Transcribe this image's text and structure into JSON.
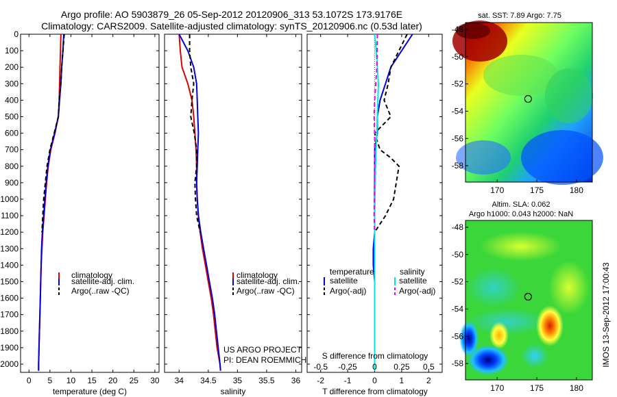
{
  "header": {
    "line1": "Argo profile: AO 5903879_26 05-Sep-2012 20120906_313 53.1072S 173.9176E",
    "line2": "Climatology: CARS2009. Satellite-adjusted climatology: synTS_20120906.nc (0.53d later)"
  },
  "colors": {
    "climatology": "#dd0000",
    "satellite": "#0000dd",
    "argo": "#000000",
    "sal_satellite": "#00e5e5",
    "sal_argo": "#ee00ee"
  },
  "chart_data": [
    {
      "id": "temperature",
      "type": "line",
      "xlabel": "temperature (deg C)",
      "xlim": [
        -2,
        31
      ],
      "xticks": [
        0,
        5,
        10,
        15,
        20,
        25,
        30
      ],
      "ylim": [
        0,
        2050
      ],
      "yticks": [
        0,
        100,
        200,
        300,
        400,
        500,
        600,
        700,
        800,
        900,
        1000,
        1100,
        1200,
        1300,
        1400,
        1500,
        1600,
        1700,
        1800,
        1900,
        2000
      ],
      "legend": [
        "climatology",
        "satellite-adj. clim.",
        "Argo(..raw -QC)"
      ],
      "series": [
        {
          "name": "climatology",
          "style": "solid",
          "color": "#dd0000",
          "points": [
            [
              7.6,
              0
            ],
            [
              7.5,
              100
            ],
            [
              7.4,
              200
            ],
            [
              7.3,
              300
            ],
            [
              7.2,
              400
            ],
            [
              7.0,
              500
            ],
            [
              6.2,
              600
            ],
            [
              5.2,
              700
            ],
            [
              4.6,
              800
            ],
            [
              4.2,
              900
            ],
            [
              3.9,
              1000
            ],
            [
              3.6,
              1100
            ],
            [
              3.3,
              1200
            ],
            [
              3.1,
              1300
            ],
            [
              2.9,
              1400
            ],
            [
              2.8,
              1500
            ],
            [
              2.7,
              1600
            ],
            [
              2.6,
              1700
            ],
            [
              2.5,
              1800
            ],
            [
              2.4,
              1900
            ],
            [
              2.3,
              2000
            ],
            [
              2.3,
              2040
            ]
          ]
        },
        {
          "name": "satellite-adj. clim.",
          "style": "solid",
          "color": "#0000dd",
          "points": [
            [
              8.3,
              0
            ],
            [
              8.1,
              100
            ],
            [
              7.8,
              200
            ],
            [
              7.6,
              300
            ],
            [
              7.3,
              400
            ],
            [
              7.0,
              500
            ],
            [
              6.1,
              600
            ],
            [
              5.1,
              700
            ],
            [
              4.5,
              800
            ],
            [
              4.1,
              900
            ],
            [
              3.8,
              1000
            ],
            [
              3.5,
              1100
            ],
            [
              3.2,
              1200
            ],
            [
              3.0,
              1300
            ],
            [
              2.9,
              1400
            ],
            [
              2.8,
              1500
            ],
            [
              2.7,
              1600
            ],
            [
              2.6,
              1700
            ],
            [
              2.5,
              1800
            ],
            [
              2.4,
              1900
            ],
            [
              2.3,
              2000
            ],
            [
              2.3,
              2040
            ]
          ]
        },
        {
          "name": "Argo(..raw -QC)",
          "style": "dashed",
          "color": "#000000",
          "points": [
            [
              8.4,
              0
            ],
            [
              8.1,
              100
            ],
            [
              7.8,
              200
            ],
            [
              7.6,
              300
            ],
            [
              7.2,
              400
            ],
            [
              7.0,
              500
            ],
            [
              6.0,
              600
            ],
            [
              5.0,
              700
            ],
            [
              4.3,
              800
            ],
            [
              3.9,
              900
            ],
            [
              3.5,
              1000
            ],
            [
              3.3,
              1100
            ],
            [
              3.1,
              1200
            ]
          ]
        }
      ]
    },
    {
      "id": "salinity",
      "type": "line",
      "xlabel": "salinity",
      "xlim": [
        33.75,
        36.1
      ],
      "xticks": [
        34,
        34.5,
        35,
        35.5,
        36
      ],
      "ylim": [
        0,
        2050
      ],
      "legend": [
        "climatology",
        "satellite-adj. clim.",
        "Argo(..raw -QC)"
      ],
      "annotation": [
        "US ARGO PROJECT",
        "PI: DEAN ROEMMICH"
      ],
      "series": [
        {
          "name": "climatology",
          "style": "solid",
          "color": "#dd0000",
          "points": [
            [
              34.0,
              0
            ],
            [
              34.02,
              100
            ],
            [
              34.05,
              200
            ],
            [
              34.15,
              300
            ],
            [
              34.22,
              400
            ],
            [
              34.25,
              500
            ],
            [
              34.27,
              600
            ],
            [
              34.29,
              700
            ],
            [
              34.3,
              800
            ],
            [
              34.3,
              900
            ],
            [
              34.31,
              1000
            ],
            [
              34.33,
              1100
            ],
            [
              34.36,
              1200
            ],
            [
              34.4,
              1300
            ],
            [
              34.45,
              1400
            ],
            [
              34.5,
              1500
            ],
            [
              34.55,
              1600
            ],
            [
              34.59,
              1700
            ],
            [
              34.62,
              1800
            ],
            [
              34.65,
              1900
            ],
            [
              34.7,
              2000
            ],
            [
              34.71,
              2040
            ]
          ]
        },
        {
          "name": "satellite-adj. clim.",
          "style": "solid",
          "color": "#0000dd",
          "points": [
            [
              34.0,
              0
            ],
            [
              34.15,
              100
            ],
            [
              34.25,
              200
            ],
            [
              34.3,
              300
            ],
            [
              34.31,
              400
            ],
            [
              34.32,
              500
            ],
            [
              34.33,
              600
            ],
            [
              34.32,
              700
            ],
            [
              34.31,
              800
            ],
            [
              34.3,
              900
            ],
            [
              34.31,
              1000
            ],
            [
              34.33,
              1100
            ],
            [
              34.37,
              1200
            ],
            [
              34.42,
              1300
            ],
            [
              34.47,
              1400
            ],
            [
              34.52,
              1500
            ],
            [
              34.57,
              1600
            ],
            [
              34.61,
              1700
            ],
            [
              34.64,
              1800
            ],
            [
              34.67,
              1900
            ],
            [
              34.7,
              2000
            ],
            [
              34.71,
              2040
            ]
          ]
        },
        {
          "name": "Argo(..raw -QC)",
          "style": "dashed",
          "color": "#000000",
          "points": [
            [
              34.18,
              0
            ],
            [
              34.18,
              100
            ],
            [
              34.2,
              200
            ],
            [
              34.25,
              300
            ],
            [
              34.22,
              400
            ],
            [
              34.2,
              500
            ],
            [
              34.26,
              600
            ],
            [
              34.3,
              700
            ],
            [
              34.3,
              800
            ],
            [
              34.27,
              900
            ],
            [
              34.28,
              1000
            ],
            [
              34.3,
              1100
            ],
            [
              34.36,
              1200
            ]
          ]
        }
      ]
    },
    {
      "id": "difference",
      "type": "line",
      "xlabel": "T difference from climatology",
      "xlabel_top": "S difference from climatology",
      "xlim": [
        -2.5,
        2.5
      ],
      "xticks": [
        -2,
        -1,
        0,
        1,
        2
      ],
      "xticks_top_labels": [
        "-0.5",
        "-0.25",
        "0",
        "0.25",
        "0.5"
      ],
      "ylim": [
        0,
        2050
      ],
      "legend_left_title": "temperature",
      "legend_right_title": "salinity",
      "legend_left": [
        "satellite",
        "Argo(-adj)"
      ],
      "legend_right": [
        "satellite",
        "Argo(-adj)"
      ],
      "series": [
        {
          "name": "T satellite",
          "style": "solid",
          "color": "#0000dd",
          "points": [
            [
              1.4,
              0
            ],
            [
              1.0,
              100
            ],
            [
              0.6,
              200
            ],
            [
              0.4,
              300
            ],
            [
              0.2,
              400
            ],
            [
              0.1,
              500
            ],
            [
              0.1,
              600
            ],
            [
              0.0,
              700
            ],
            [
              0.0,
              800
            ],
            [
              0.0,
              900
            ],
            [
              0.0,
              1000
            ],
            [
              0.0,
              1100
            ],
            [
              0.0,
              1200
            ],
            [
              -0.05,
              1300
            ],
            [
              -0.05,
              1400
            ],
            [
              0.0,
              1500
            ],
            [
              0.0,
              1600
            ],
            [
              0.0,
              1700
            ],
            [
              0.0,
              1800
            ],
            [
              0.0,
              1900
            ],
            [
              0.0,
              2000
            ],
            [
              0.0,
              2040
            ]
          ]
        },
        {
          "name": "T Argo(-adj)",
          "style": "dashed",
          "color": "#000000",
          "points": [
            [
              1.2,
              0
            ],
            [
              0.9,
              100
            ],
            [
              0.6,
              200
            ],
            [
              0.5,
              300
            ],
            [
              0.35,
              400
            ],
            [
              0.6,
              500
            ],
            [
              0.0,
              600
            ],
            [
              0.2,
              700
            ],
            [
              0.6,
              750
            ],
            [
              0.9,
              800
            ],
            [
              0.8,
              900
            ],
            [
              0.7,
              1000
            ],
            [
              0.4,
              1100
            ],
            [
              0.0,
              1200
            ]
          ]
        },
        {
          "name": "S satellite",
          "style": "solid",
          "color": "#00e5e5",
          "points": [
            [
              0.0,
              0
            ],
            [
              0.06,
              100
            ],
            [
              0.1,
              200
            ],
            [
              0.14,
              300
            ],
            [
              0.12,
              400
            ],
            [
              0.1,
              500
            ],
            [
              0.08,
              600
            ],
            [
              0.05,
              700
            ],
            [
              0.03,
              800
            ],
            [
              0.02,
              900
            ],
            [
              0.01,
              1000
            ],
            [
              0.0,
              1100
            ],
            [
              0.0,
              1200
            ],
            [
              0.0,
              1400
            ],
            [
              0.0,
              1600
            ],
            [
              0.0,
              1800
            ],
            [
              0.0,
              2000
            ],
            [
              0.0,
              2040
            ]
          ]
        },
        {
          "name": "S Argo(-adj)",
          "style": "dashed",
          "color": "#ee00ee",
          "points": [
            [
              0.1,
              0
            ],
            [
              0.09,
              100
            ],
            [
              0.08,
              200
            ],
            [
              0.0,
              400
            ],
            [
              -0.02,
              500
            ],
            [
              0.0,
              600
            ],
            [
              0.0,
              800
            ],
            [
              -0.01,
              1000
            ],
            [
              -0.02,
              1100
            ],
            [
              0.0,
              1200
            ]
          ]
        }
      ]
    },
    {
      "id": "sst_map",
      "type": "heatmap",
      "title": "sat. SST: 7.89 Argo: 7.75",
      "xticks": [
        170,
        175,
        180
      ],
      "yticks": [
        -48,
        -50,
        -52,
        -54,
        -56,
        -58
      ],
      "xlim": [
        166,
        182
      ],
      "ylim": [
        -59.2,
        -47.5
      ],
      "marker": [
        173.9,
        -53.1
      ]
    },
    {
      "id": "sla_map",
      "type": "heatmap",
      "title_line1": "Altim. SLA: 0.062",
      "title_line2": "Argo h1000: 0.043 h2000: NaN",
      "xticks": [
        170,
        175,
        180
      ],
      "yticks": [
        -48,
        -50,
        -52,
        -54,
        -56,
        -58
      ],
      "xlim": [
        166,
        182
      ],
      "ylim": [
        -59.2,
        -47.5
      ],
      "marker": [
        173.9,
        -53.1
      ],
      "side_label": "IMOS 13-Sep-2012 17:00:43"
    }
  ]
}
